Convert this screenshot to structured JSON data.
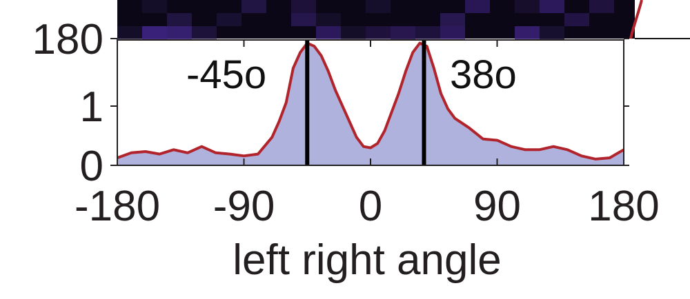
{
  "chart_data": {
    "type": "area",
    "title": "",
    "xlabel": "left right angle",
    "ylabel": "",
    "xlim": [
      -180,
      180
    ],
    "ylim": [
      0,
      2
    ],
    "x_ticks": [
      -180,
      -90,
      0,
      90,
      180
    ],
    "x_tick_labels": [
      "-180",
      "-90",
      "0",
      "90",
      "180"
    ],
    "y_tick_labels": [
      "0",
      "1",
      "180"
    ],
    "peaks": [
      {
        "x": -45,
        "label": "-45o"
      },
      {
        "x": 38,
        "label": "38o"
      }
    ],
    "series": [
      {
        "x": [
          -180,
          -170,
          -160,
          -150,
          -140,
          -130,
          -120,
          -110,
          -100,
          -90,
          -80,
          -70,
          -65,
          -60,
          -55,
          -50,
          -45,
          -40,
          -35,
          -30,
          -25,
          -20,
          -15,
          -10,
          -5,
          0,
          5,
          10,
          15,
          20,
          25,
          30,
          35,
          40,
          45,
          50,
          55,
          60,
          70,
          80,
          90,
          100,
          110,
          120,
          130,
          140,
          150,
          160,
          170,
          180
        ],
        "y": [
          0.12,
          0.2,
          0.22,
          0.18,
          0.25,
          0.2,
          0.3,
          0.2,
          0.18,
          0.15,
          0.18,
          0.45,
          0.7,
          1.0,
          1.55,
          1.8,
          1.95,
          1.9,
          1.75,
          1.5,
          1.2,
          0.95,
          0.7,
          0.45,
          0.3,
          0.28,
          0.35,
          0.55,
          0.85,
          1.15,
          1.5,
          1.8,
          1.95,
          1.9,
          1.55,
          1.15,
          0.9,
          0.75,
          0.6,
          0.42,
          0.4,
          0.3,
          0.25,
          0.25,
          0.3,
          0.25,
          0.15,
          0.1,
          0.12,
          0.25
        ],
        "line_color": "#b1242b",
        "fill_color": "#b0b2de"
      }
    ],
    "heatmap_strip": {
      "type": "heatmap",
      "colors": [
        "#0c0716",
        "#1a1233",
        "#2a1a55",
        "#3d2380"
      ]
    }
  }
}
